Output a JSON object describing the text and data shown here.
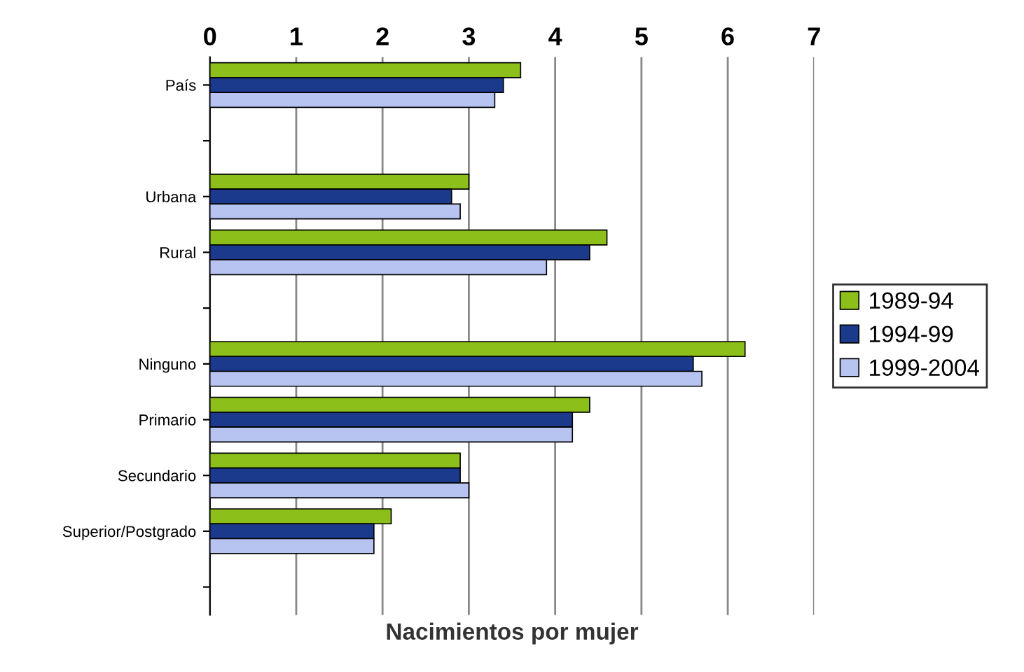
{
  "chart_data": {
    "type": "bar",
    "orientation": "horizontal",
    "xlabel": "Nacimientos por mujer",
    "categories": [
      "País",
      null,
      "Urbana",
      "Rural",
      null,
      "Ninguno",
      "Primario",
      "Secundario",
      "Superior/Postgrado",
      null
    ],
    "series": [
      {
        "name": "1989-94",
        "color": "#8cbf1a",
        "values": [
          3.6,
          null,
          3.0,
          4.6,
          null,
          6.2,
          4.4,
          2.9,
          2.1,
          null
        ]
      },
      {
        "name": "1994-99",
        "color": "#1c3a8c",
        "values": [
          3.4,
          null,
          2.8,
          4.4,
          null,
          5.6,
          4.2,
          2.9,
          1.9,
          null
        ]
      },
      {
        "name": "1999-2004",
        "color": "#b7c4f2",
        "values": [
          3.3,
          null,
          2.9,
          3.9,
          null,
          5.7,
          4.2,
          3.0,
          1.9,
          null
        ]
      }
    ],
    "xlim": [
      0,
      7
    ],
    "xticks": [
      0,
      1,
      2,
      3,
      4,
      5,
      6,
      7
    ],
    "grid": "x",
    "legend": "right"
  }
}
